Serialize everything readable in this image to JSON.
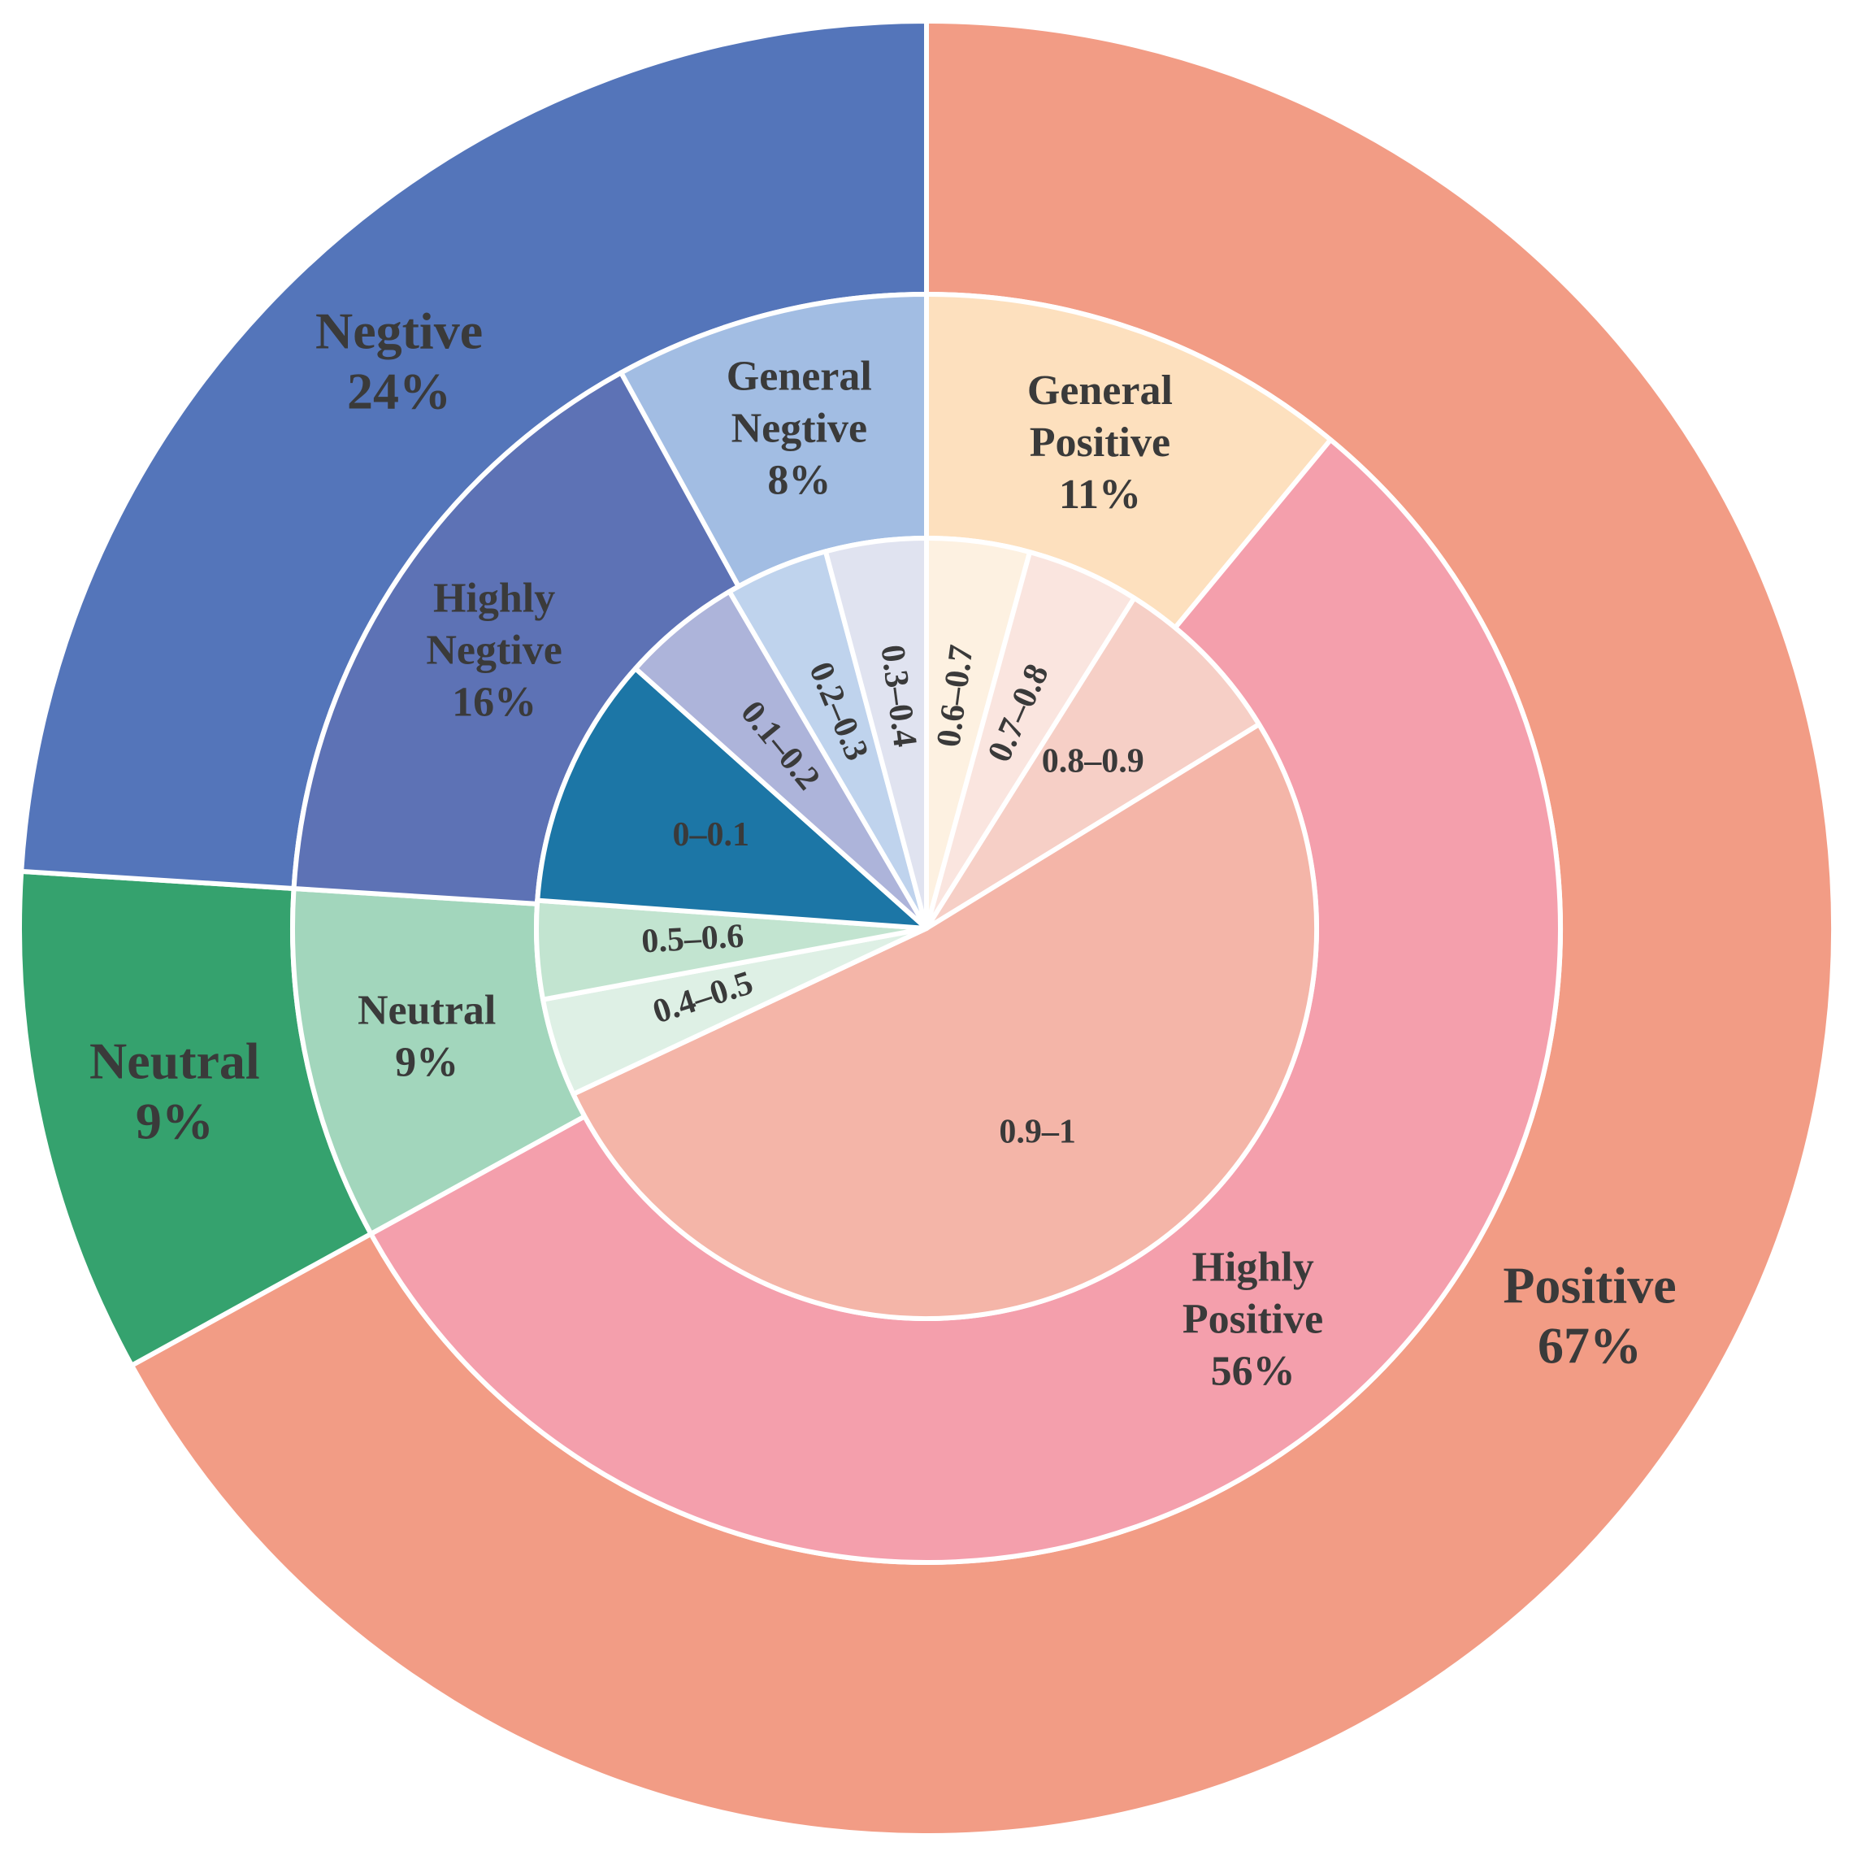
{
  "chart_data": {
    "type": "pie",
    "variant": "nested-donut",
    "rings": [
      {
        "name": "outer",
        "slices": [
          {
            "label": "Positive",
            "value": 67,
            "percent_text": "67%",
            "color": "#F29C85"
          },
          {
            "label": "Neutral",
            "value": 9,
            "percent_text": "9%",
            "color": "#35A26E"
          },
          {
            "label": "Negtive",
            "value": 24,
            "percent_text": "24%",
            "color": "#5475BA"
          }
        ]
      },
      {
        "name": "middle",
        "slices": [
          {
            "label_lines": [
              "General",
              "Positive"
            ],
            "value": 11,
            "percent_text": "11%",
            "color": "#FDE0BE"
          },
          {
            "label_lines": [
              "Highly",
              "Positive"
            ],
            "value": 56,
            "percent_text": "56%",
            "color": "#F49FAC"
          },
          {
            "label_lines": [
              "Neutral"
            ],
            "value": 9,
            "percent_text": "9%",
            "color": "#A2D6BC"
          },
          {
            "label_lines": [
              "Highly",
              "Negtive"
            ],
            "value": 16,
            "percent_text": "16%",
            "color": "#5D72B5"
          },
          {
            "label_lines": [
              "General",
              "Negtive"
            ],
            "value": 8,
            "percent_text": "8%",
            "color": "#A2BDE3"
          }
        ]
      },
      {
        "name": "inner",
        "slices": [
          {
            "label": "0.6–0.7",
            "value": 4.2,
            "color": "#FDF1E1"
          },
          {
            "label": "0.7–0.8",
            "value": 4.6,
            "color": "#FAE5DF"
          },
          {
            "label": "0.8–0.9",
            "value": 7.2,
            "color": "#F6CFC6"
          },
          {
            "label": "0.9–1",
            "value": 51,
            "color": "#F4B5A8"
          },
          {
            "label": "0.4–0.5",
            "value": 4.0,
            "color": "#DEF0E5"
          },
          {
            "label": "0.5–0.6",
            "value": 4.0,
            "color": "#C2E4D0"
          },
          {
            "label": "0–0.1",
            "value": 10.3,
            "color": "#1C76A6"
          },
          {
            "label": "0.1–0.2",
            "value": 4.9,
            "color": "#ADB4DA"
          },
          {
            "label": "0.2–0.3",
            "value": 4.2,
            "color": "#BFD3ED"
          },
          {
            "label": "0.3–0.4",
            "value": 4.1,
            "color": "#E0E3F0"
          }
        ]
      }
    ],
    "start_angle_deg": 0,
    "direction": "clockwise"
  }
}
